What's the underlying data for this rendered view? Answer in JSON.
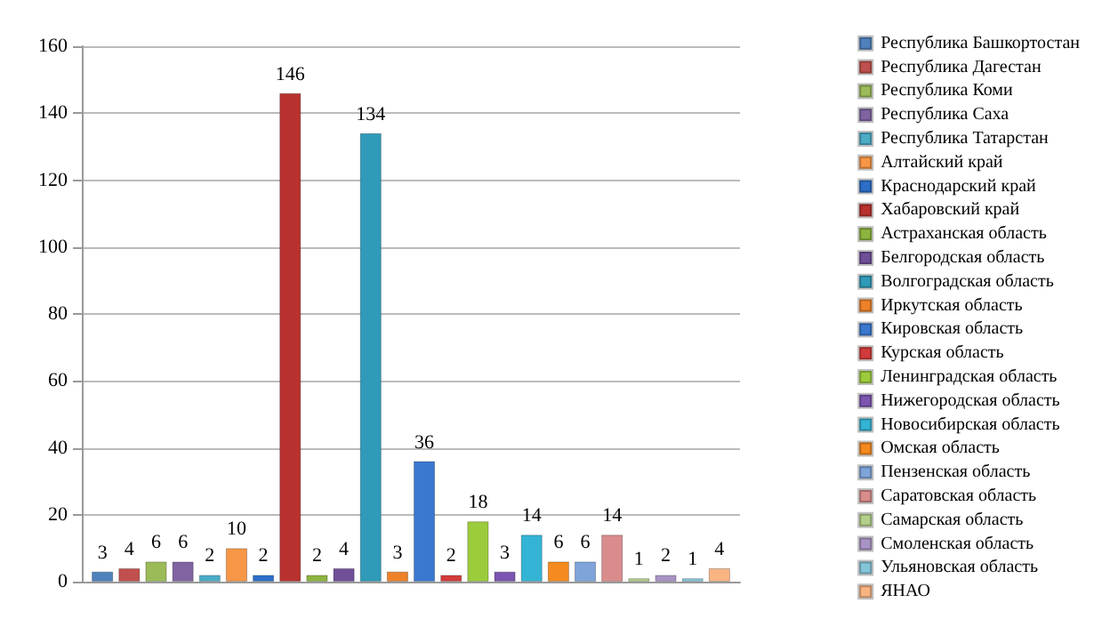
{
  "chart_data": {
    "type": "bar",
    "categories": [
      null
    ],
    "ylim": [
      0,
      160
    ],
    "yticks": [
      0,
      20,
      40,
      60,
      80,
      100,
      120,
      140,
      160
    ],
    "grid": "y",
    "legend": "right",
    "data_labels": true,
    "series": [
      {
        "name": "Республика Башкортостан",
        "color": "#4f81bd",
        "values": [
          3
        ]
      },
      {
        "name": "Республика Дагестан",
        "color": "#c0504d",
        "values": [
          4
        ]
      },
      {
        "name": "Республика Коми",
        "color": "#9bbb59",
        "values": [
          6
        ]
      },
      {
        "name": "Республика Саха",
        "color": "#8064a2",
        "values": [
          6
        ]
      },
      {
        "name": "Республика Татарстан",
        "color": "#4bacc6",
        "values": [
          2
        ]
      },
      {
        "name": "Алтайский край",
        "color": "#f79646",
        "values": [
          10
        ]
      },
      {
        "name": "Краснодарский край",
        "color": "#2c6fc7",
        "values": [
          2
        ]
      },
      {
        "name": "Хабаровский край",
        "color": "#b8312f",
        "values": [
          146
        ]
      },
      {
        "name": "Астраханская область",
        "color": "#8db43e",
        "values": [
          2
        ]
      },
      {
        "name": "Белгородская область",
        "color": "#6f4f98",
        "values": [
          4
        ]
      },
      {
        "name": "Волгоградская область",
        "color": "#2f9bb8",
        "values": [
          134
        ]
      },
      {
        "name": "Иркутская область",
        "color": "#ee8229",
        "values": [
          3
        ]
      },
      {
        "name": "Кировская область",
        "color": "#3a78d0",
        "values": [
          36
        ]
      },
      {
        "name": "Курская область",
        "color": "#d23b3b",
        "values": [
          2
        ]
      },
      {
        "name": "Ленинградская область",
        "color": "#9ccc3c",
        "values": [
          18
        ]
      },
      {
        "name": "Нижегородская область",
        "color": "#7b55b0",
        "values": [
          3
        ]
      },
      {
        "name": "Новосибирская область",
        "color": "#34b4d4",
        "values": [
          14
        ]
      },
      {
        "name": "Омская область",
        "color": "#f58a1f",
        "values": [
          6
        ]
      },
      {
        "name": "Пензенская область",
        "color": "#7ea4da",
        "values": [
          6
        ]
      },
      {
        "name": "Саратовская область",
        "color": "#d98c8c",
        "values": [
          14
        ]
      },
      {
        "name": "Самарская область",
        "color": "#b3cf8a",
        "values": [
          1
        ]
      },
      {
        "name": "Смоленская область",
        "color": "#a893c4",
        "values": [
          2
        ]
      },
      {
        "name": "Ульяновская область",
        "color": "#84c6d8",
        "values": [
          1
        ]
      },
      {
        "name": "ЯНАО",
        "color": "#f9b483",
        "values": [
          4
        ]
      }
    ]
  }
}
